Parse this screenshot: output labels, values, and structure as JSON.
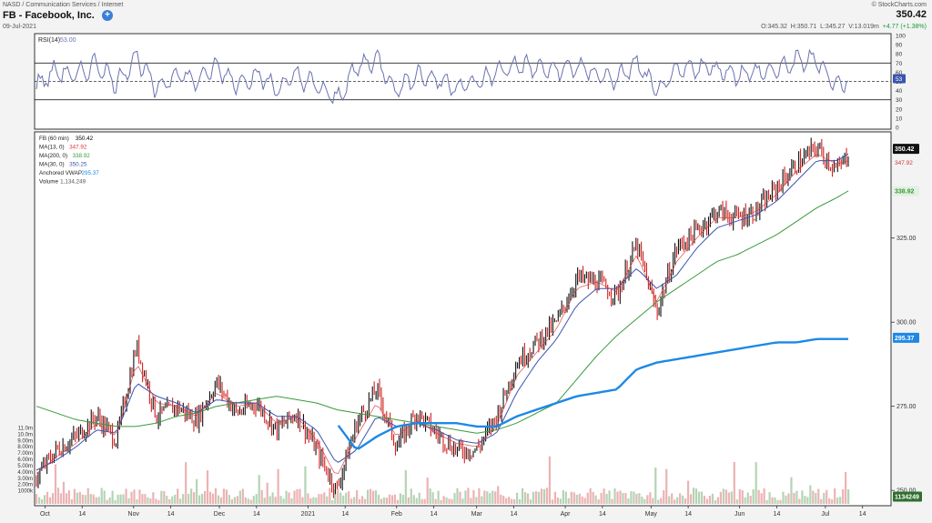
{
  "header": {
    "exchange_line": "NASD / Communication Services / Internet",
    "date": "09-Jul-2021",
    "ticker_title": "FB - Facebook, Inc.",
    "info_icon": "info-plus-icon",
    "watermark": "© StockCharts.com",
    "last_price": "350.42",
    "ohlc": {
      "open_label": "O:",
      "open": "345.32",
      "high_label": "H:",
      "high": "350.71",
      "low_label": "L:",
      "low": "345.27",
      "volume_label": "V:",
      "volume": "13.019m",
      "change": "+4.77 (+1.38%)"
    }
  },
  "rsi_panel": {
    "legend": "RSI(14)",
    "legend_value": "53.00",
    "ticks": [
      "100",
      "90",
      "80",
      "70",
      "60",
      "50",
      "40",
      "30",
      "20",
      "10",
      "0"
    ],
    "current_badge": "53"
  },
  "price_panel": {
    "legend": [
      {
        "label": "FB (60 min)",
        "value": "350.42",
        "color": "#000000"
      },
      {
        "label": "MA(13, 0)",
        "value": "347.92",
        "color": "#d93636"
      },
      {
        "label": "MA(200, 0)",
        "value": "338.92",
        "color": "#3a9a3a"
      },
      {
        "label": "MA(30, 0)",
        "value": "350.25",
        "color": "#3a55b0"
      },
      {
        "label": "Anchored VWAP",
        "value": "295.37",
        "color": "#1e88e5"
      },
      {
        "label": "Volume",
        "value": "1,134,249",
        "color": "#555555"
      }
    ],
    "price_ticks": [
      "325.00",
      "300.00",
      "275.00",
      "250.00"
    ],
    "volume_ticks": [
      "11.0m",
      "10.0m",
      "9.00m",
      "8.00m",
      "7.00m",
      "6.00m",
      "5.00m",
      "4.00m",
      "3.00m",
      "2.00m",
      "1000k"
    ],
    "badges": {
      "last": "350.42",
      "ma13": "347.92",
      "ma200": "338.92",
      "vwap": "295.37",
      "volume": "1134249"
    },
    "x_ticks": [
      "Oct",
      "14",
      "Nov",
      "14",
      "Dec",
      "14",
      "2021",
      "14",
      "Feb",
      "14",
      "Mar",
      "14",
      "Apr",
      "14",
      "May",
      "14",
      "Jun",
      "14",
      "Jul",
      "14"
    ]
  },
  "colors": {
    "up_bar": "#111111",
    "down_bar": "#d32020",
    "ma13": "#d93636",
    "ma30": "#3a55b0",
    "ma200": "#3a9a3a",
    "vwap": "#1e88e5",
    "rsi": "#6a72b0"
  },
  "chart_data": {
    "type": "line",
    "title": "FB - Facebook, Inc.",
    "x_period": "60 min",
    "x_range": [
      "2020-09-28",
      "2021-07-09"
    ],
    "ylim": [
      246,
      356
    ],
    "rsi_ylim": [
      0,
      100
    ],
    "grid": false,
    "legend_position": "top-left",
    "series": [
      {
        "name": "FB (60 min)",
        "x": [
          "2020-09-28",
          "2020-10-05",
          "2020-10-12",
          "2020-10-19",
          "2020-10-26",
          "2020-11-02",
          "2020-11-09",
          "2020-11-16",
          "2020-11-23",
          "2020-11-30",
          "2020-12-07",
          "2020-12-14",
          "2020-12-21",
          "2020-12-28",
          "2021-01-04",
          "2021-01-11",
          "2021-01-18",
          "2021-01-25",
          "2021-02-01",
          "2021-02-08",
          "2021-02-15",
          "2021-02-22",
          "2021-03-01",
          "2021-03-08",
          "2021-03-15",
          "2021-03-22",
          "2021-03-29",
          "2021-04-05",
          "2021-04-12",
          "2021-04-19",
          "2021-04-26",
          "2021-05-03",
          "2021-05-10",
          "2021-05-17",
          "2021-05-24",
          "2021-05-31",
          "2021-06-07",
          "2021-06-14",
          "2021-06-21",
          "2021-06-28",
          "2021-07-05",
          "2021-07-09"
        ],
        "values": [
          254,
          262,
          266,
          272,
          265,
          293,
          272,
          275,
          271,
          282,
          273,
          276,
          268,
          273,
          262,
          250,
          270,
          280,
          263,
          273,
          267,
          262,
          262,
          272,
          288,
          294,
          300,
          313,
          312,
          308,
          323,
          303,
          322,
          327,
          333,
          331,
          333,
          340,
          347,
          352,
          345,
          350
        ]
      },
      {
        "name": "MA(13, 0)",
        "values": [
          255,
          260,
          264,
          270,
          266,
          288,
          276,
          275,
          272,
          279,
          275,
          276,
          270,
          272,
          265,
          254,
          266,
          276,
          266,
          271,
          267,
          264,
          263,
          269,
          284,
          291,
          298,
          310,
          312,
          309,
          320,
          306,
          318,
          325,
          331,
          331,
          333,
          338,
          345,
          350,
          347,
          348
        ]
      },
      {
        "name": "MA(30, 0)",
        "values": [
          256,
          259,
          263,
          268,
          267,
          282,
          278,
          276,
          273,
          277,
          276,
          276,
          272,
          272,
          268,
          258,
          262,
          272,
          269,
          270,
          268,
          265,
          264,
          267,
          279,
          288,
          295,
          305,
          310,
          310,
          316,
          310,
          314,
          322,
          328,
          330,
          332,
          336,
          342,
          348,
          348,
          350
        ]
      },
      {
        "name": "MA(200, 0)",
        "values": [
          275,
          273,
          271,
          270,
          269,
          269,
          270,
          272,
          273,
          275,
          276,
          277,
          278,
          277,
          276,
          274,
          273,
          272,
          271,
          270,
          269,
          268,
          267,
          268,
          270,
          273,
          276,
          283,
          290,
          296,
          301,
          306,
          310,
          314,
          318,
          320,
          323,
          326,
          330,
          334,
          337,
          339
        ]
      },
      {
        "name": "Anchored VWAP",
        "values": [
          null,
          null,
          null,
          null,
          null,
          null,
          null,
          null,
          null,
          null,
          null,
          null,
          null,
          null,
          null,
          270,
          262,
          266,
          269,
          270,
          270,
          270,
          269,
          269,
          272,
          274,
          276,
          278,
          279,
          280,
          286,
          288,
          289,
          290,
          291,
          292,
          293,
          294,
          294,
          295,
          295,
          295
        ]
      },
      {
        "name": "RSI(14)",
        "values": [
          45,
          62,
          55,
          70,
          48,
          78,
          40,
          60,
          50,
          66,
          48,
          58,
          42,
          56,
          45,
          30,
          65,
          75,
          40,
          58,
          52,
          45,
          48,
          60,
          68,
          64,
          62,
          66,
          58,
          52,
          70,
          38,
          60,
          66,
          64,
          58,
          60,
          62,
          72,
          74,
          44,
          53
        ]
      }
    ]
  }
}
